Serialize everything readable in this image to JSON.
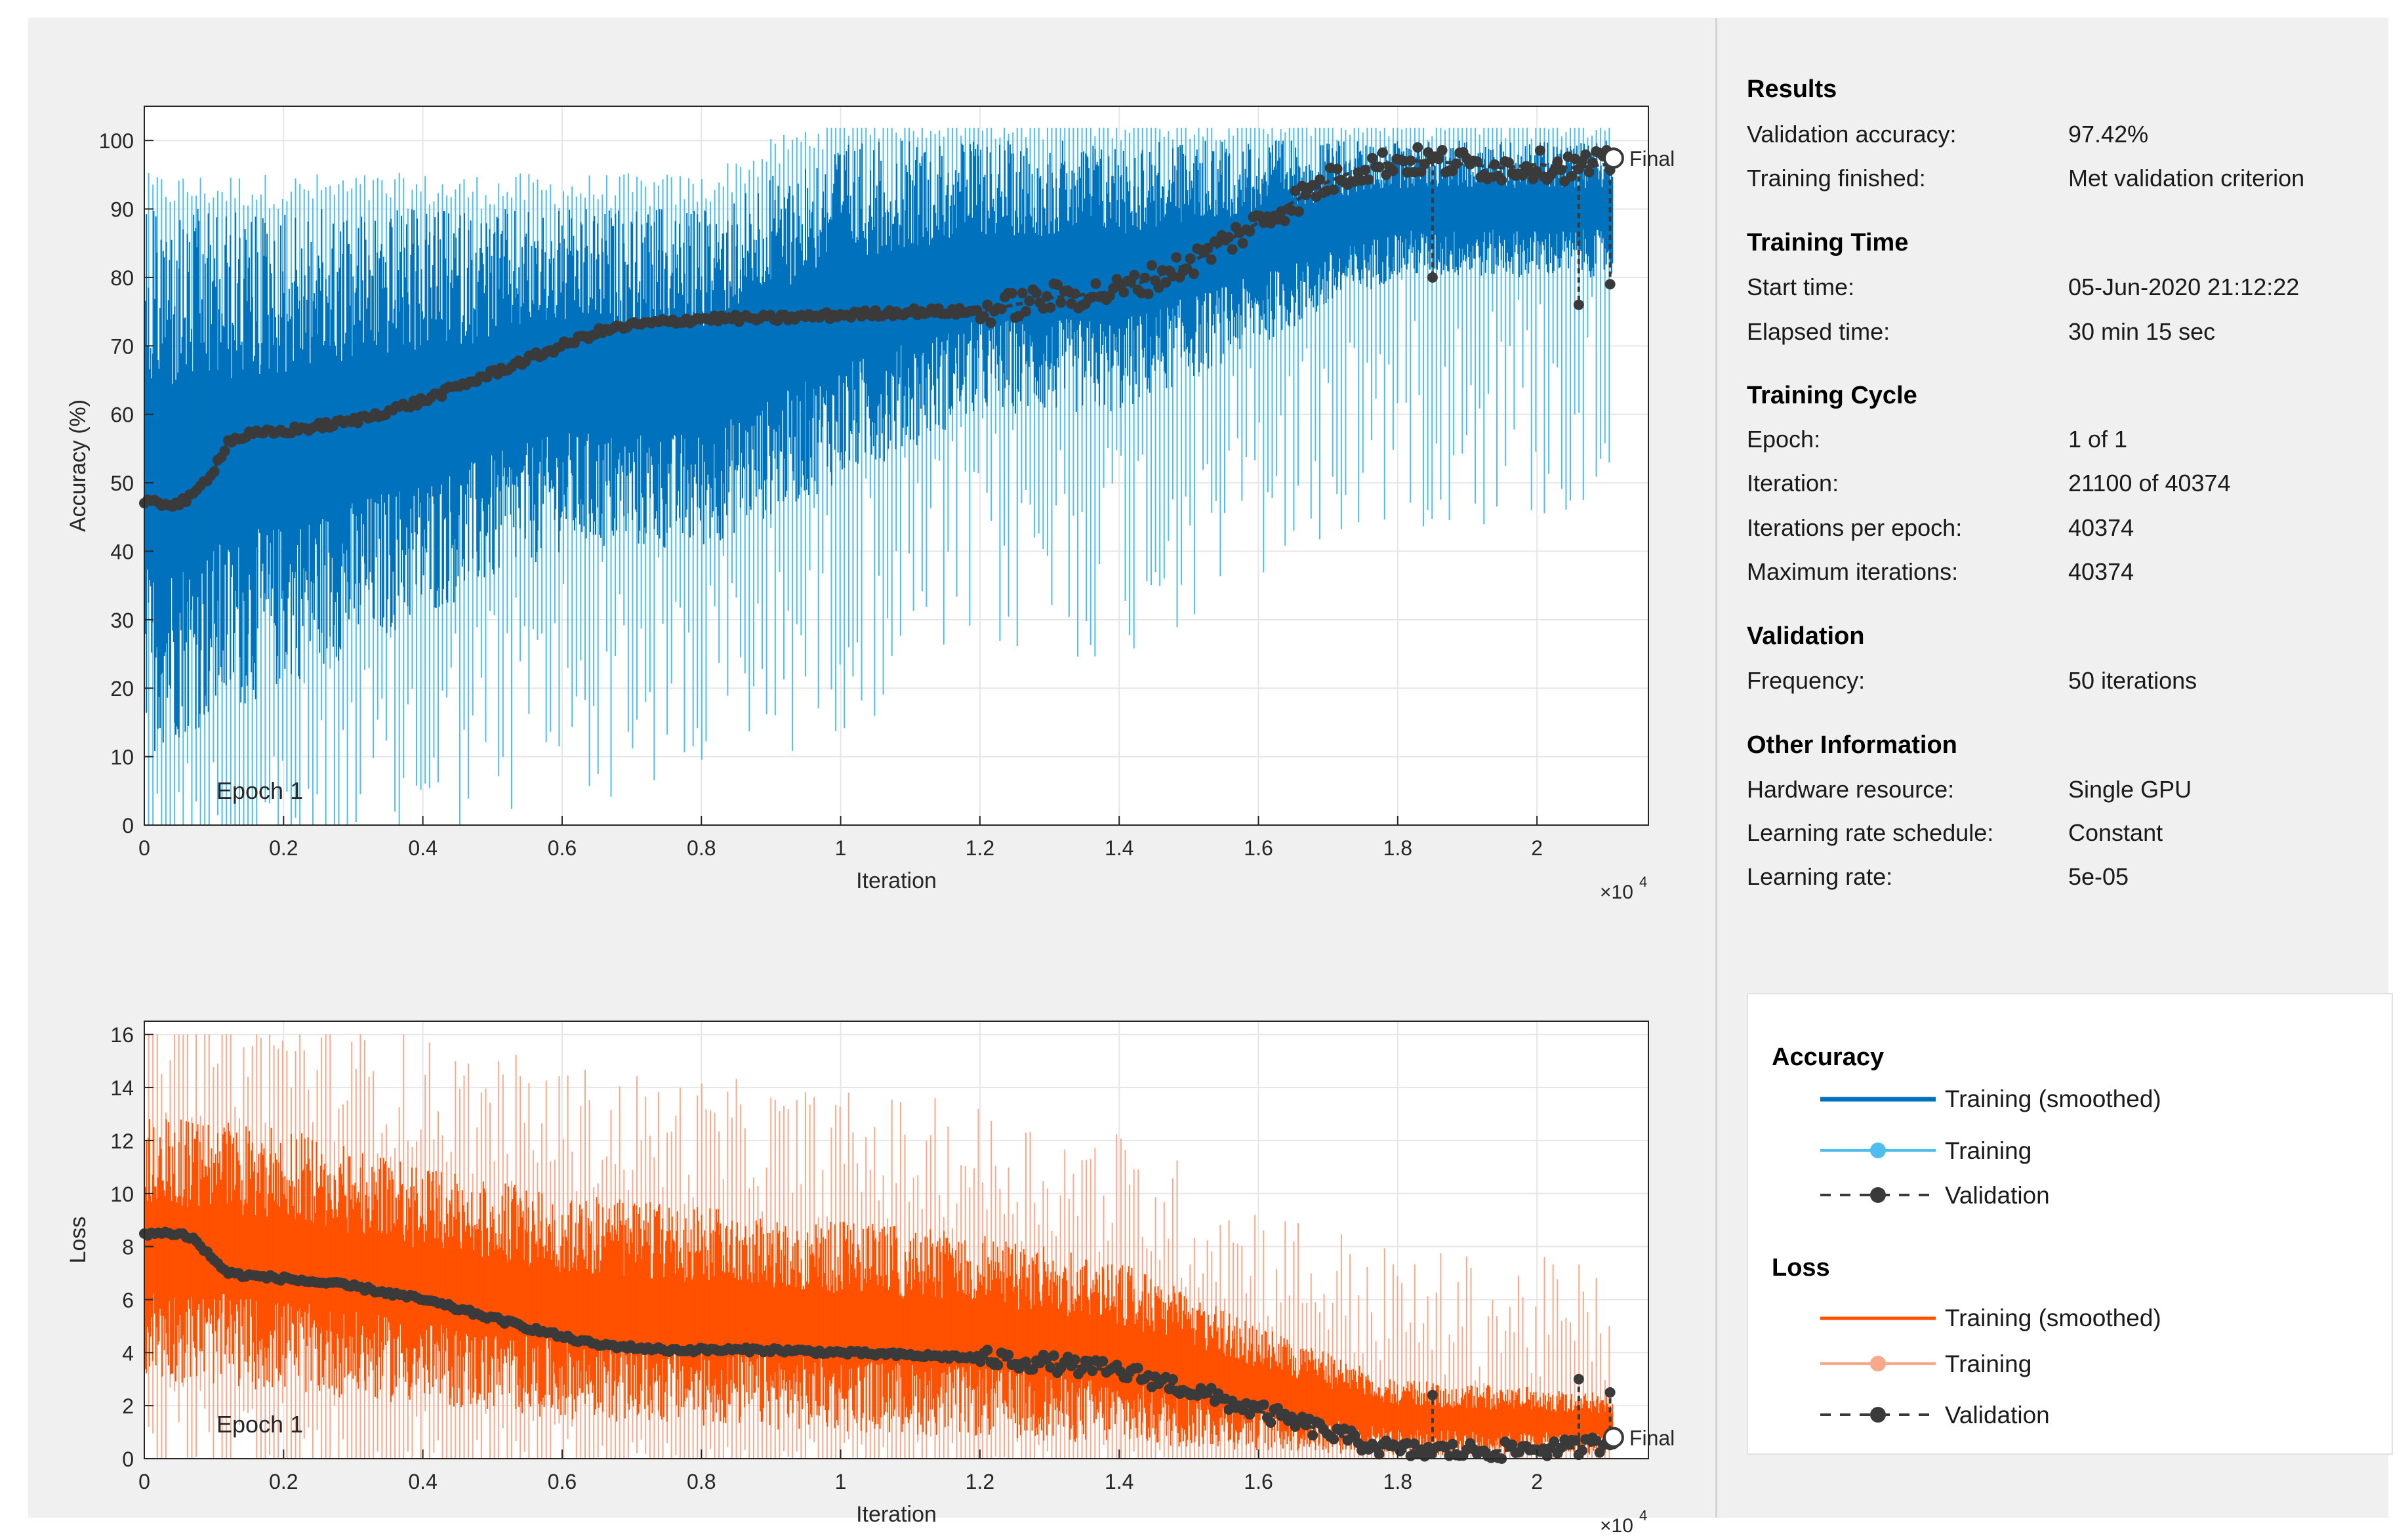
{
  "results": {
    "title": "Results",
    "rows": [
      {
        "label": "Validation accuracy:",
        "value": "97.42%"
      },
      {
        "label": "Training finished:",
        "value": "Met validation criterion"
      }
    ]
  },
  "training_time": {
    "title": "Training Time",
    "rows": [
      {
        "label": "Start time:",
        "value": "05-Jun-2020 21:12:22"
      },
      {
        "label": "Elapsed time:",
        "value": "30 min 15 sec"
      }
    ]
  },
  "training_cycle": {
    "title": "Training Cycle",
    "rows": [
      {
        "label": "Epoch:",
        "value": "1 of 1"
      },
      {
        "label": "Iteration:",
        "value": "21100 of 40374"
      },
      {
        "label": "Iterations per epoch:",
        "value": "40374"
      },
      {
        "label": "Maximum iterations:",
        "value": "40374"
      }
    ]
  },
  "validation": {
    "title": "Validation",
    "rows": [
      {
        "label": "Frequency:",
        "value": "50 iterations"
      }
    ]
  },
  "other_information": {
    "title": "Other Information",
    "rows": [
      {
        "label": "Hardware resource:",
        "value": "Single GPU"
      },
      {
        "label": "Learning rate schedule:",
        "value": "Constant"
      },
      {
        "label": "Learning rate:",
        "value": "5e-05"
      }
    ]
  },
  "legend": {
    "accuracy_title": "Accuracy",
    "loss_title": "Loss",
    "accuracy_items": [
      "Training (smoothed)",
      "Training",
      "Validation"
    ],
    "loss_items": [
      "Training (smoothed)",
      "Training",
      "Validation"
    ]
  },
  "colors": {
    "accuracy_smoothed": "#0072bd",
    "accuracy_training": "#4dbeee",
    "loss_smoothed": "#ff5100",
    "loss_training": "#f9a98b",
    "validation": "#3a3a3a"
  },
  "chart_data": [
    {
      "type": "line",
      "ylabel": "Accuracy (%)",
      "xlabel": "Iteration",
      "x_exponent_label": "×10",
      "x_exponent": "4",
      "xlim": [
        0,
        21600
      ],
      "ylim": [
        0,
        105
      ],
      "x_ticks": [
        0,
        2000,
        4000,
        6000,
        8000,
        10000,
        12000,
        14000,
        16000,
        18000,
        20000
      ],
      "x_tick_labels": [
        "0",
        "0.2",
        "0.4",
        "0.6",
        "0.8",
        "1",
        "1.2",
        "1.4",
        "1.6",
        "1.8",
        "2"
      ],
      "y_ticks": [
        0,
        10,
        20,
        30,
        40,
        50,
        60,
        70,
        80,
        90,
        100
      ],
      "y_tick_labels": [
        "0",
        "10",
        "20",
        "30",
        "40",
        "50",
        "60",
        "70",
        "80",
        "90",
        "100"
      ],
      "epoch_label": "Epoch 1",
      "final_label": "Final",
      "final_iteration": 21100,
      "final_validation_value": 97.42,
      "grid": true,
      "series": [
        {
          "name": "Training (smoothed)",
          "band": [
            [
              0,
              10,
              90
            ],
            [
              2000,
              20,
              90
            ],
            [
              4000,
              30,
              90
            ],
            [
              6000,
              40,
              90
            ],
            [
              8000,
              40,
              90
            ],
            [
              10000,
              50,
              100
            ],
            [
              12000,
              60,
              100
            ],
            [
              14000,
              60,
              100
            ],
            [
              16000,
              70,
              100
            ],
            [
              18000,
              80,
              100
            ],
            [
              21100,
              80,
              100
            ]
          ]
        },
        {
          "name": "Validation",
          "x": [
            0,
            500,
            700,
            1000,
            1200,
            1500,
            2000,
            3000,
            4000,
            5000,
            6000,
            6500,
            7000,
            7500,
            8000,
            9000,
            10000,
            11000,
            12000,
            12500,
            13000,
            14000,
            14500,
            15000,
            15500,
            16000,
            16500,
            17000,
            17500,
            18000,
            18500,
            19000,
            19500,
            20000,
            20500,
            21000,
            21100
          ],
          "y": [
            47,
            47,
            48,
            52,
            56,
            57,
            57.5,
            59,
            62,
            66,
            70,
            72,
            73,
            73.5,
            74,
            74,
            74.5,
            75,
            75,
            76,
            77,
            78,
            80,
            82,
            85,
            88,
            91,
            94,
            96,
            97,
            97,
            96.5,
            96,
            96.5,
            96,
            96.5,
            97.42
          ]
        }
      ],
      "validation_dips": [
        [
          18500,
          80
        ],
        [
          20600,
          76
        ],
        [
          21050,
          79
        ]
      ]
    },
    {
      "type": "line",
      "ylabel": "Loss",
      "xlabel": "Iteration",
      "x_exponent_label": "×10",
      "x_exponent": "4",
      "xlim": [
        0,
        21600
      ],
      "ylim": [
        0,
        16.5
      ],
      "x_ticks": [
        0,
        2000,
        4000,
        6000,
        8000,
        10000,
        12000,
        14000,
        16000,
        18000,
        20000
      ],
      "x_tick_labels": [
        "0",
        "0.2",
        "0.4",
        "0.6",
        "0.8",
        "1",
        "1.2",
        "1.4",
        "1.6",
        "1.8",
        "2"
      ],
      "y_ticks": [
        0,
        2,
        4,
        6,
        8,
        10,
        12,
        14,
        16
      ],
      "y_tick_labels": [
        "0",
        "2",
        "4",
        "6",
        "8",
        "10",
        "12",
        "14",
        "16"
      ],
      "epoch_label": "Epoch 1",
      "final_label": "Final",
      "final_iteration": 21100,
      "grid": true,
      "series": [
        {
          "name": "Training (smoothed)",
          "band": [
            [
              0,
              3,
              13
            ],
            [
              2000,
              2.5,
              12.5
            ],
            [
              4000,
              2,
              11
            ],
            [
              6000,
              1.5,
              10
            ],
            [
              8000,
              1.2,
              9.5
            ],
            [
              10000,
              1,
              9
            ],
            [
              12000,
              0.8,
              8.5
            ],
            [
              14000,
              0.5,
              7.5
            ],
            [
              16000,
              0.3,
              5
            ],
            [
              18000,
              0.1,
              3
            ],
            [
              21100,
              0.1,
              2.5
            ]
          ]
        },
        {
          "name": "Validation",
          "x": [
            0,
            500,
            700,
            1000,
            1200,
            1500,
            2000,
            3000,
            4000,
            5000,
            6000,
            6500,
            7000,
            7500,
            8000,
            9000,
            10000,
            11000,
            12000,
            13000,
            14000,
            14500,
            15000,
            15500,
            16000,
            16500,
            17000,
            17500,
            18000,
            18500,
            19000,
            19500,
            20000,
            20500,
            21000,
            21100
          ],
          "y": [
            8.5,
            8.5,
            8.3,
            7.5,
            7,
            6.9,
            6.8,
            6.5,
            6,
            5.3,
            4.6,
            4.3,
            4.2,
            4.1,
            4.1,
            4.1,
            4,
            3.9,
            3.8,
            3.6,
            3.3,
            3,
            2.6,
            2.2,
            1.8,
            1.4,
            1,
            0.6,
            0.3,
            0.3,
            0.3,
            0.3,
            0.4,
            0.4,
            0.6,
            0.8
          ]
        }
      ],
      "validation_spikes": [
        [
          18500,
          2.4
        ],
        [
          20600,
          3
        ],
        [
          21050,
          2.5
        ]
      ]
    }
  ]
}
